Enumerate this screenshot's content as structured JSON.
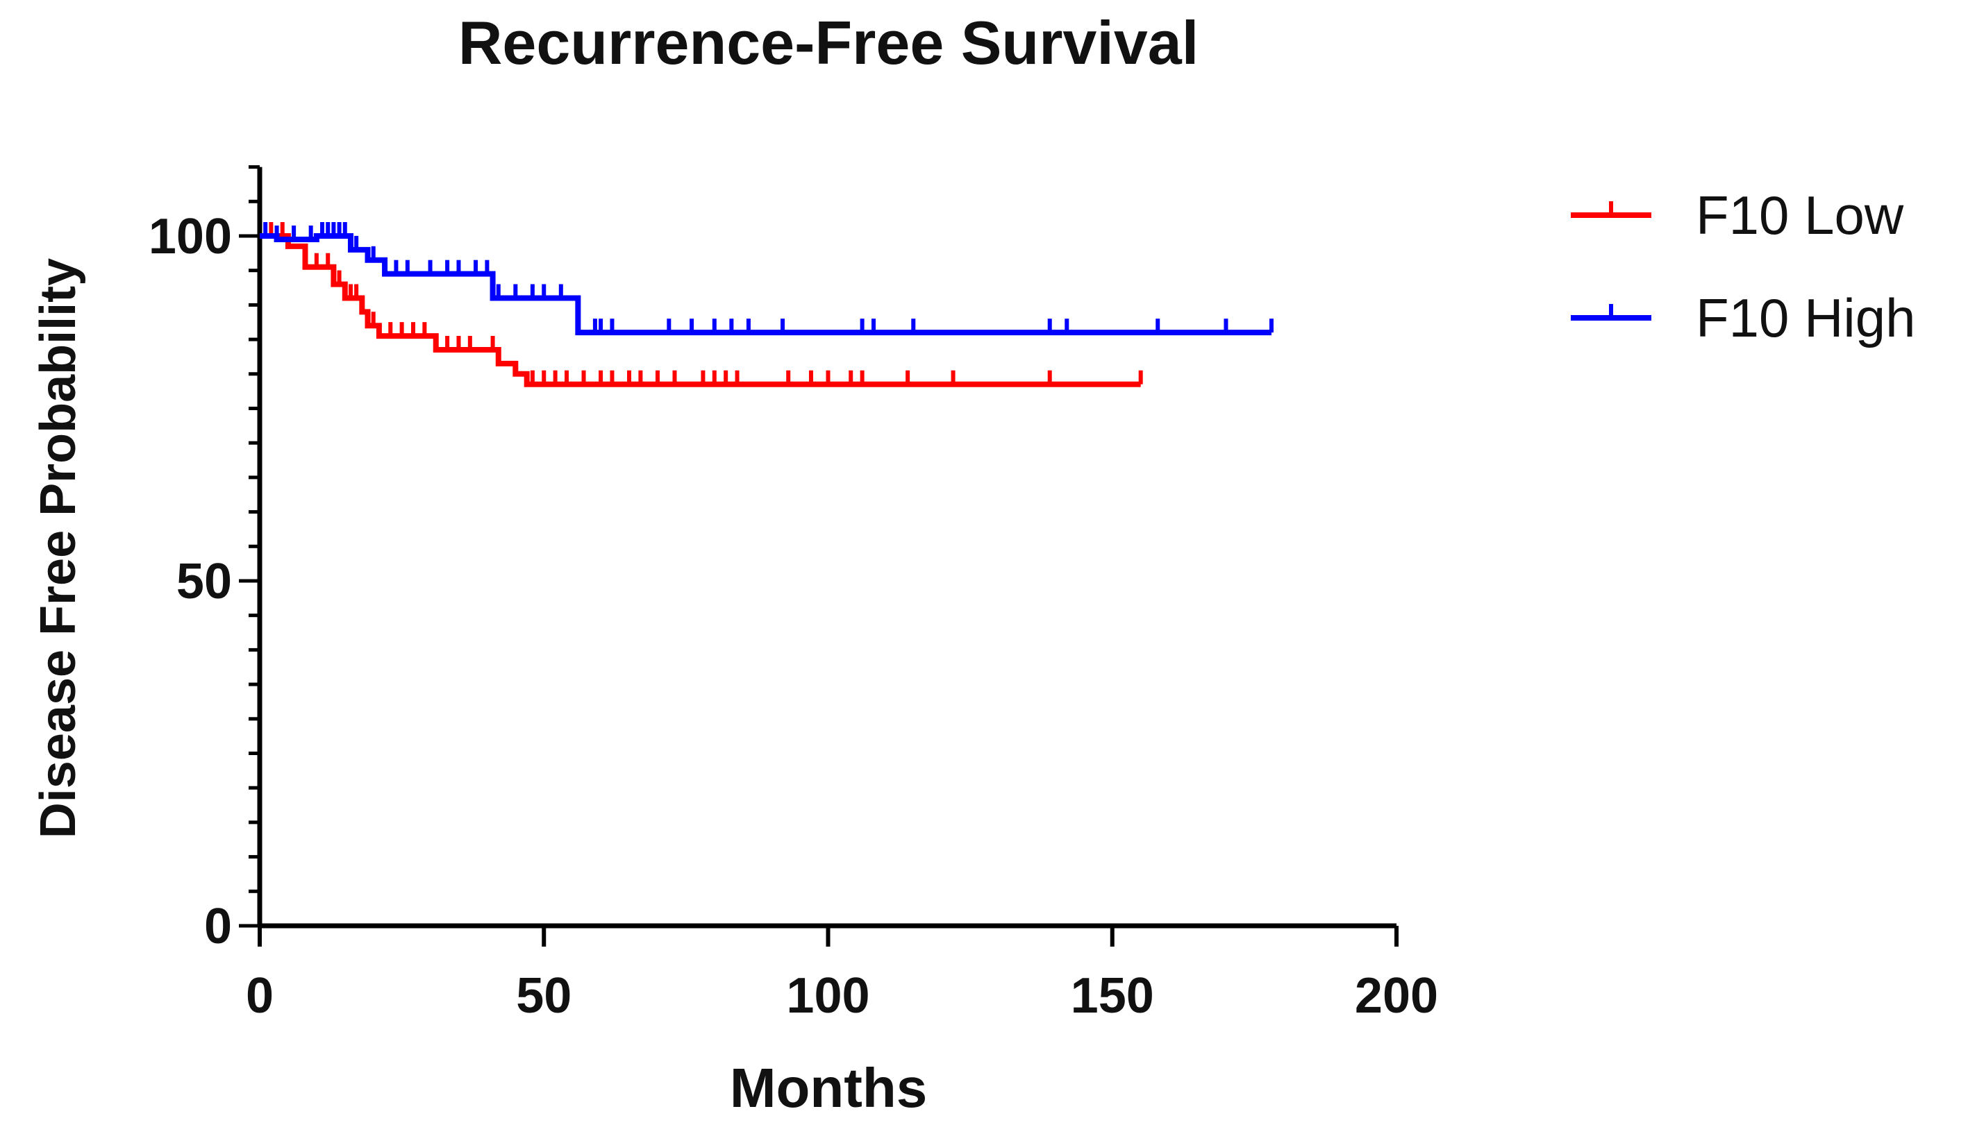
{
  "chart_data": {
    "type": "line",
    "subtype": "kaplan-meier",
    "title": "Recurrence-Free Survival",
    "xlabel": "Months",
    "ylabel": "Disease Free Probability",
    "xlim": [
      0,
      200
    ],
    "ylim": [
      0,
      110
    ],
    "xticks": [
      "0",
      "50",
      "100",
      "150",
      "200"
    ],
    "yticks": [
      "0",
      "50",
      "100"
    ],
    "grid": false,
    "legend_position": "right-top",
    "series": [
      {
        "name": "F10 Low",
        "color": "#ff0000",
        "steps": [
          [
            0,
            100
          ],
          [
            5,
            98.5
          ],
          [
            8,
            95.5
          ],
          [
            13,
            93
          ],
          [
            15,
            91
          ],
          [
            18,
            89
          ],
          [
            19,
            87
          ],
          [
            21,
            85.5
          ],
          [
            31,
            83.5
          ],
          [
            42,
            81.5
          ],
          [
            45,
            80
          ],
          [
            47,
            78.5
          ],
          [
            155,
            78.5
          ]
        ],
        "censored": [
          2,
          4,
          10,
          12,
          14,
          16,
          17,
          20,
          23,
          25,
          27,
          29,
          33,
          35,
          37,
          41,
          48,
          50,
          52,
          54,
          57,
          60,
          62,
          65,
          67,
          70,
          73,
          78,
          80,
          82,
          84,
          93,
          97,
          100,
          104,
          106,
          114,
          122,
          139,
          155
        ]
      },
      {
        "name": "F10 High",
        "color": "#0000ff",
        "steps": [
          [
            0,
            100
          ],
          [
            3,
            99.5
          ],
          [
            10,
            100
          ],
          [
            16,
            98
          ],
          [
            19,
            96.5
          ],
          [
            22,
            94.5
          ],
          [
            41,
            91
          ],
          [
            56,
            86
          ],
          [
            178,
            86
          ]
        ],
        "censored": [
          1,
          3,
          6,
          9,
          11,
          12,
          13,
          14,
          15,
          17,
          20,
          24,
          26,
          30,
          33,
          35,
          38,
          40,
          42,
          45,
          48,
          50,
          53,
          59,
          60,
          62,
          72,
          76,
          80,
          83,
          86,
          92,
          106,
          108,
          115,
          139,
          142,
          158,
          170,
          178
        ]
      }
    ]
  }
}
